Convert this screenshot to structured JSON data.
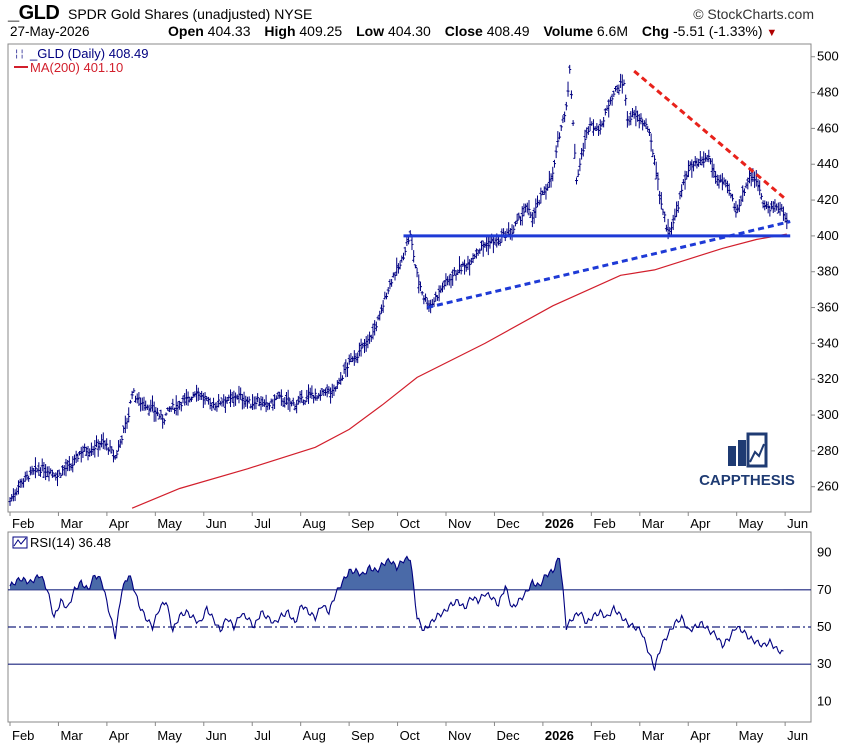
{
  "header": {
    "symbol": "_GLD",
    "description": "SPDR Gold Shares (unadjusted) NYSE",
    "brand": "© StockCharts.com",
    "date": "27-May-2026",
    "open_label": "Open",
    "open": "404.33",
    "high_label": "High",
    "high": "409.25",
    "low_label": "Low",
    "low": "404.30",
    "close_label": "Close",
    "close": "408.49",
    "volume_label": "Volume",
    "volume": "6.6M",
    "chg_label": "Chg",
    "chg": "-5.51 (-1.33%)",
    "chg_arrow": "▼"
  },
  "watermark": {
    "text": "CAPPTHESIS",
    "color": "#1f3b73"
  },
  "chart_data": [
    {
      "type": "ohlc",
      "legend": [
        {
          "text": "_GLD (Daily) 408.49",
          "color": "#000080"
        },
        {
          "text": "MA(200) 401.10",
          "color": "#d21f2c"
        }
      ],
      "x_ticks": [
        "Feb",
        "Mar",
        "Apr",
        "May",
        "Jun",
        "Jul",
        "Aug",
        "Sep",
        "Oct",
        "Nov",
        "Dec",
        "2026",
        "Feb",
        "Mar",
        "Apr",
        "May",
        "Jun"
      ],
      "y_ticks": [
        260,
        280,
        300,
        320,
        340,
        360,
        380,
        400,
        420,
        440,
        460,
        480,
        500
      ],
      "ylim": [
        247,
        506
      ],
      "y_axis_side": "right",
      "grid": false,
      "colors": {
        "price": "#000080",
        "ma": "#d21f2c",
        "support": "#1e3ad6",
        "resistance": "#e8221b"
      },
      "price_close": [
        [
          0,
          252
        ],
        [
          3,
          262
        ],
        [
          6,
          267
        ],
        [
          9,
          270
        ],
        [
          12,
          269
        ],
        [
          14,
          266
        ],
        [
          16,
          270
        ],
        [
          18,
          271
        ],
        [
          21,
          280
        ],
        [
          24,
          281
        ],
        [
          27,
          285
        ],
        [
          29,
          282
        ],
        [
          31,
          276
        ],
        [
          33,
          288
        ],
        [
          35,
          300
        ],
        [
          36,
          313
        ],
        [
          38,
          308
        ],
        [
          40,
          306
        ],
        [
          43,
          302
        ],
        [
          45,
          297
        ],
        [
          47,
          303
        ],
        [
          49,
          305
        ],
        [
          51,
          308
        ],
        [
          53,
          309
        ],
        [
          55,
          314
        ],
        [
          57,
          309
        ],
        [
          59,
          306
        ],
        [
          61,
          306
        ],
        [
          63,
          309
        ],
        [
          65,
          308
        ],
        [
          67,
          311
        ],
        [
          69,
          309
        ],
        [
          71,
          306
        ],
        [
          73,
          309
        ],
        [
          75,
          305
        ],
        [
          77,
          306
        ],
        [
          79,
          310
        ],
        [
          81,
          308
        ],
        [
          83,
          306
        ],
        [
          85,
          307
        ],
        [
          87,
          309
        ],
        [
          89,
          312
        ],
        [
          91,
          309
        ],
        [
          93,
          314
        ],
        [
          95,
          312
        ],
        [
          97,
          318
        ],
        [
          99,
          326
        ],
        [
          101,
          332
        ],
        [
          103,
          335
        ],
        [
          105,
          340
        ],
        [
          107,
          346
        ],
        [
          109,
          355
        ],
        [
          111,
          368
        ],
        [
          113,
          378
        ],
        [
          115,
          383
        ],
        [
          117,
          396
        ],
        [
          118,
          400
        ],
        [
          120,
          378
        ],
        [
          122,
          366
        ],
        [
          124,
          361
        ],
        [
          126,
          367
        ],
        [
          128,
          373
        ],
        [
          130,
          377
        ],
        [
          132,
          381
        ],
        [
          134,
          383
        ],
        [
          136,
          387
        ],
        [
          138,
          392
        ],
        [
          140,
          395
        ],
        [
          142,
          397
        ],
        [
          144,
          396
        ],
        [
          146,
          401
        ],
        [
          148,
          402
        ],
        [
          150,
          409
        ],
        [
          152,
          415
        ],
        [
          154,
          411
        ],
        [
          156,
          419
        ],
        [
          158,
          427
        ],
        [
          160,
          434
        ],
        [
          162,
          457
        ],
        [
          164,
          473
        ],
        [
          165,
          492
        ],
        [
          166,
          464
        ],
        [
          167,
          431
        ],
        [
          169,
          449
        ],
        [
          171,
          464
        ],
        [
          173,
          459
        ],
        [
          175,
          464
        ],
        [
          177,
          477
        ],
        [
          179,
          482
        ],
        [
          181,
          486
        ],
        [
          182,
          465
        ],
        [
          184,
          467
        ],
        [
          186,
          465
        ],
        [
          188,
          460
        ],
        [
          190,
          443
        ],
        [
          192,
          418
        ],
        [
          194,
          402
        ],
        [
          196,
          410
        ],
        [
          198,
          425
        ],
        [
          200,
          438
        ],
        [
          202,
          439
        ],
        [
          204,
          441
        ],
        [
          206,
          444
        ],
        [
          208,
          433
        ],
        [
          210,
          430
        ],
        [
          212,
          425
        ],
        [
          214,
          414
        ],
        [
          216,
          423
        ],
        [
          218,
          434
        ],
        [
          220,
          432
        ],
        [
          222,
          420
        ],
        [
          224,
          414
        ],
        [
          226,
          417
        ],
        [
          228,
          413
        ],
        [
          229,
          408
        ]
      ],
      "ma200": [
        [
          36,
          248
        ],
        [
          50,
          259
        ],
        [
          70,
          270
        ],
        [
          90,
          282
        ],
        [
          100,
          292
        ],
        [
          110,
          306
        ],
        [
          120,
          321
        ],
        [
          140,
          340
        ],
        [
          160,
          361
        ],
        [
          180,
          378
        ],
        [
          190,
          381
        ],
        [
          200,
          387
        ],
        [
          210,
          393
        ],
        [
          220,
          398
        ],
        [
          229,
          401
        ]
      ],
      "trendlines": [
        {
          "style": "solid",
          "color": "#1e3ad6",
          "points": [
            [
              116,
              400
            ],
            [
              230,
              400
            ]
          ]
        },
        {
          "style": "dashed",
          "color": "#1e3ad6",
          "points": [
            [
              123,
              360
            ],
            [
              230,
              408
            ]
          ]
        },
        {
          "style": "dashed",
          "color": "#e8221b",
          "points": [
            [
              184,
              492
            ],
            [
              229,
              420
            ]
          ]
        }
      ],
      "x_range": [
        0,
        232
      ]
    },
    {
      "type": "area-line",
      "legend": [
        {
          "text": "RSI(14) 36.48",
          "color": "#000080"
        }
      ],
      "x_ticks": [
        "Feb",
        "Mar",
        "Apr",
        "May",
        "Jun",
        "Jul",
        "Aug",
        "Sep",
        "Oct",
        "Nov",
        "Dec",
        "2026",
        "Feb",
        "Mar",
        "Apr",
        "May",
        "Jun"
      ],
      "y_ticks": [
        10,
        30,
        50,
        70,
        90
      ],
      "ylim": [
        0,
        100
      ],
      "y_axis_side": "right",
      "levels": [
        {
          "value": 70,
          "style": "solid"
        },
        {
          "value": 50,
          "style": "dashdot"
        },
        {
          "value": 30,
          "style": "solid"
        }
      ],
      "fill_above": 70,
      "color": "#000080",
      "fill_color": "#4a6aa8",
      "rsi": [
        [
          0,
          72
        ],
        [
          3,
          76
        ],
        [
          6,
          74
        ],
        [
          9,
          78
        ],
        [
          11,
          70
        ],
        [
          13,
          55
        ],
        [
          15,
          64
        ],
        [
          17,
          60
        ],
        [
          19,
          70
        ],
        [
          21,
          74
        ],
        [
          23,
          70
        ],
        [
          25,
          78
        ],
        [
          27,
          75
        ],
        [
          29,
          60
        ],
        [
          31,
          45
        ],
        [
          33,
          70
        ],
        [
          35,
          78
        ],
        [
          36,
          74
        ],
        [
          38,
          62
        ],
        [
          40,
          55
        ],
        [
          42,
          50
        ],
        [
          44,
          60
        ],
        [
          46,
          64
        ],
        [
          48,
          48
        ],
        [
          50,
          56
        ],
        [
          52,
          58
        ],
        [
          54,
          55
        ],
        [
          56,
          52
        ],
        [
          58,
          60
        ],
        [
          60,
          54
        ],
        [
          62,
          48
        ],
        [
          64,
          55
        ],
        [
          66,
          50
        ],
        [
          68,
          57
        ],
        [
          70,
          55
        ],
        [
          72,
          50
        ],
        [
          74,
          58
        ],
        [
          76,
          55
        ],
        [
          78,
          52
        ],
        [
          80,
          56
        ],
        [
          82,
          58
        ],
        [
          84,
          52
        ],
        [
          86,
          62
        ],
        [
          88,
          58
        ],
        [
          90,
          55
        ],
        [
          92,
          62
        ],
        [
          94,
          58
        ],
        [
          96,
          68
        ],
        [
          98,
          74
        ],
        [
          100,
          80
        ],
        [
          102,
          80
        ],
        [
          104,
          78
        ],
        [
          106,
          82
        ],
        [
          108,
          80
        ],
        [
          110,
          84
        ],
        [
          112,
          86
        ],
        [
          114,
          82
        ],
        [
          116,
          86
        ],
        [
          118,
          87
        ],
        [
          120,
          55
        ],
        [
          122,
          48
        ],
        [
          124,
          52
        ],
        [
          126,
          56
        ],
        [
          128,
          58
        ],
        [
          130,
          62
        ],
        [
          132,
          64
        ],
        [
          134,
          60
        ],
        [
          136,
          66
        ],
        [
          138,
          64
        ],
        [
          140,
          68
        ],
        [
          142,
          66
        ],
        [
          144,
          62
        ],
        [
          146,
          72
        ],
        [
          148,
          60
        ],
        [
          150,
          64
        ],
        [
          152,
          68
        ],
        [
          154,
          74
        ],
        [
          156,
          72
        ],
        [
          158,
          78
        ],
        [
          160,
          80
        ],
        [
          162,
          88
        ],
        [
          163,
          70
        ],
        [
          164,
          50
        ],
        [
          166,
          55
        ],
        [
          168,
          58
        ],
        [
          170,
          52
        ],
        [
          172,
          56
        ],
        [
          174,
          58
        ],
        [
          176,
          55
        ],
        [
          178,
          60
        ],
        [
          180,
          56
        ],
        [
          182,
          52
        ],
        [
          184,
          50
        ],
        [
          186,
          48
        ],
        [
          188,
          38
        ],
        [
          190,
          28
        ],
        [
          192,
          40
        ],
        [
          194,
          46
        ],
        [
          196,
          52
        ],
        [
          198,
          55
        ],
        [
          200,
          48
        ],
        [
          202,
          50
        ],
        [
          204,
          52
        ],
        [
          206,
          48
        ],
        [
          208,
          46
        ],
        [
          210,
          40
        ],
        [
          212,
          44
        ],
        [
          214,
          50
        ],
        [
          216,
          48
        ],
        [
          218,
          44
        ],
        [
          220,
          42
        ],
        [
          222,
          40
        ],
        [
          224,
          42
        ],
        [
          226,
          38
        ],
        [
          228,
          36
        ]
      ],
      "x_range": [
        0,
        232
      ]
    }
  ]
}
